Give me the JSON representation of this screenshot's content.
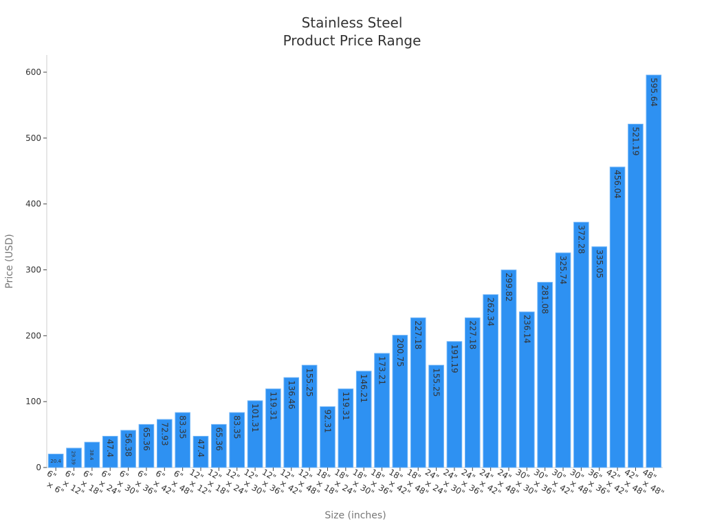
{
  "title_line1": "Stainless Steel",
  "title_line2": "Product Price Range",
  "colors": {
    "bar": "#2e91f2",
    "bar_edge": "#6fb4f7",
    "label": "#333333",
    "axis": "#cccccc"
  },
  "chart_data": {
    "type": "bar",
    "title": "Stainless Steel Product Price Range",
    "xlabel": "Size (inches)",
    "ylabel": "Price (USD)",
    "ylim": [
      0,
      620
    ],
    "yticks": [
      0,
      100,
      200,
      300,
      400,
      500,
      600
    ],
    "grid": false,
    "legend": null,
    "categories": [
      "6\" x 6\"",
      "6\" x 12\"",
      "6\" x 18\"",
      "6\" x 24\"",
      "6\" x 30\"",
      "6\" x 36\"",
      "6\" x 42\"",
      "6\" x 48\"",
      "12\" x 12\"",
      "12\" x 18\"",
      "12\" x 24\"",
      "12\" x 30\"",
      "12\" x 36\"",
      "12\" x 42\"",
      "12\" x 48\"",
      "18\" x 18\"",
      "18\" x 24\"",
      "18\" x 30\"",
      "18\" x 36\"",
      "18\" x 42\"",
      "18\" x 48\"",
      "24\" x 24\"",
      "24\" x 30\"",
      "24\" x 36\"",
      "24\" x 42\"",
      "24\" x 48\"",
      "30\" x 30\"",
      "30\" x 36\"",
      "30\" x 42\"",
      "30\" x 48\"",
      "36\" x 36\"",
      "42\" x 42\"",
      "42\" x 48\"",
      "48\" x 48\""
    ],
    "values": [
      20.4,
      29.39,
      38.4,
      47.4,
      56.38,
      65.36,
      72.93,
      83.35,
      47.4,
      65.36,
      83.35,
      101.31,
      119.31,
      136.46,
      155.25,
      92.31,
      119.31,
      146.21,
      173.21,
      200.75,
      227.18,
      155.25,
      191.19,
      227.18,
      262.34,
      299.82,
      236.14,
      281.08,
      325.74,
      372.28,
      335.05,
      456.04,
      521.19,
      595.64
    ]
  }
}
